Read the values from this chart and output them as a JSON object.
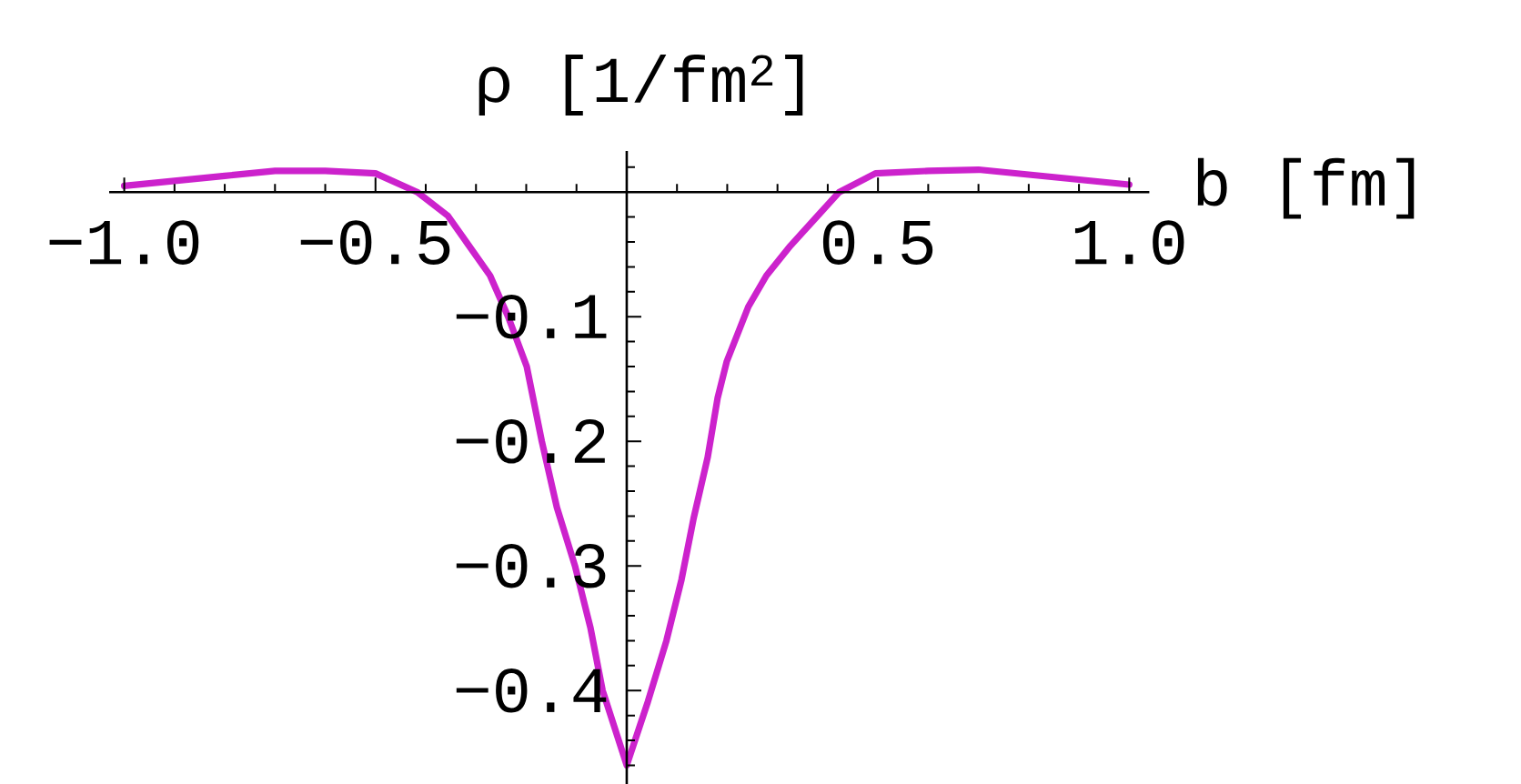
{
  "chart_data": {
    "type": "line",
    "xlabel": "b [fm]",
    "ylabel": "ρ [1/fm$^{2}$]",
    "x": [
      -1.0,
      -0.9,
      -0.8,
      -0.7,
      -0.6,
      -0.5,
      -0.417,
      -0.356,
      -0.314,
      -0.272,
      -0.236,
      -0.199,
      -0.169,
      -0.139,
      -0.103,
      -0.072,
      -0.048,
      0,
      0.042,
      0.079,
      0.109,
      0.133,
      0.161,
      0.181,
      0.199,
      0.242,
      0.278,
      0.326,
      0.38,
      0.423,
      0.495,
      0.6,
      0.7,
      0.8,
      0.9,
      1.0
    ],
    "values": [
      0.005,
      0.009,
      0.013,
      0.017,
      0.017,
      0.015,
      0.0,
      -0.019,
      -0.043,
      -0.067,
      -0.1,
      -0.14,
      -0.2,
      -0.253,
      -0.3,
      -0.35,
      -0.4,
      -0.46,
      -0.409,
      -0.36,
      -0.311,
      -0.262,
      -0.213,
      -0.165,
      -0.136,
      -0.092,
      -0.067,
      -0.043,
      -0.019,
      0.0,
      0.015,
      0.017,
      0.018,
      0.014,
      0.01,
      0.006
    ],
    "color": "#cc22cc",
    "xlim": [
      -1.03,
      1.04
    ],
    "ylim": [
      -0.475,
      0.033
    ],
    "xticks": [
      {
        "value": -1.0,
        "label": "−1.0"
      },
      {
        "value": -0.9,
        "label": null
      },
      {
        "value": -0.8,
        "label": null
      },
      {
        "value": -0.7,
        "label": null
      },
      {
        "value": -0.6,
        "label": null
      },
      {
        "value": -0.5,
        "label": "−0.5"
      },
      {
        "value": -0.4,
        "label": null
      },
      {
        "value": -0.3,
        "label": null
      },
      {
        "value": -0.2,
        "label": null
      },
      {
        "value": -0.1,
        "label": null
      },
      {
        "value": 0.1,
        "label": null
      },
      {
        "value": 0.2,
        "label": null
      },
      {
        "value": 0.3,
        "label": null
      },
      {
        "value": 0.4,
        "label": null
      },
      0.5,
      {
        "value": 0.6,
        "label": null
      },
      {
        "value": 0.7,
        "label": null
      },
      {
        "value": 0.8,
        "label": null
      },
      {
        "value": 0.9,
        "label": null
      },
      {
        "value": 1.0,
        "label": "1.0"
      }
    ],
    "yticks": [
      {
        "value": 0.02,
        "label": null
      },
      {
        "value": -0.02,
        "label": null
      },
      {
        "value": -0.04,
        "label": null
      },
      {
        "value": -0.06,
        "label": null
      },
      {
        "value": -0.08,
        "label": null
      },
      {
        "value": -0.1,
        "label": "−0.1"
      },
      {
        "value": -0.12,
        "label": null
      },
      {
        "value": -0.14,
        "label": null
      },
      {
        "value": -0.16,
        "label": null
      },
      {
        "value": -0.18,
        "label": null
      },
      {
        "value": -0.2,
        "label": "−0.2"
      },
      {
        "value": -0.22,
        "label": null
      },
      {
        "value": -0.24,
        "label": null
      },
      {
        "value": -0.26,
        "label": null
      },
      {
        "value": -0.28,
        "label": null
      },
      {
        "value": -0.3,
        "label": "−0.3"
      },
      {
        "value": -0.32,
        "label": null
      },
      {
        "value": -0.34,
        "label": null
      },
      {
        "value": -0.36,
        "label": null
      },
      {
        "value": -0.38,
        "label": null
      },
      {
        "value": -0.4,
        "label": "−0.4"
      },
      {
        "value": -0.42,
        "label": null
      },
      {
        "value": -0.44,
        "label": null
      },
      {
        "value": -0.46,
        "label": null
      }
    ]
  }
}
